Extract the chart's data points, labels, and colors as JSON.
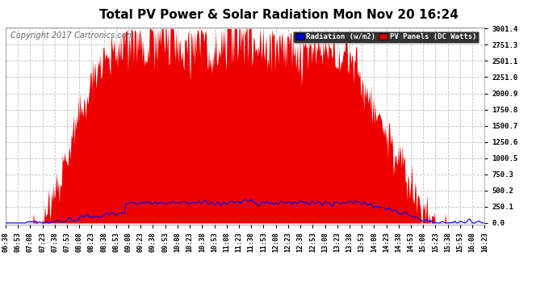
{
  "title": "Total PV Power & Solar Radiation Mon Nov 20 16:24",
  "copyright": "Copyright 2017 Cartronics.com",
  "yticks": [
    0.0,
    250.1,
    500.2,
    750.3,
    1000.5,
    1250.6,
    1500.7,
    1750.8,
    2000.9,
    2251.0,
    2501.1,
    2751.3,
    3001.4
  ],
  "ymax": 3001.4,
  "ymin": 0.0,
  "legend_radiation_label": "Radiation (w/m2)",
  "legend_pv_label": "PV Panels (DC Watts)",
  "legend_radiation_bg": "#0000cc",
  "legend_pv_bg": "#cc0000",
  "background_color": "#ffffff",
  "plot_bg": "#ffffff",
  "grid_color": "#bbbbbb",
  "bar_color": "#ee0000",
  "line_color": "#0000ee",
  "title_fontsize": 11,
  "copyright_fontsize": 7,
  "x_tick_labels": [
    "06:38",
    "06:53",
    "07:08",
    "07:23",
    "07:38",
    "07:53",
    "08:08",
    "08:23",
    "08:38",
    "08:53",
    "09:08",
    "09:23",
    "09:38",
    "09:53",
    "10:08",
    "10:23",
    "10:38",
    "10:53",
    "11:08",
    "11:23",
    "11:38",
    "11:53",
    "12:08",
    "12:23",
    "12:38",
    "12:53",
    "13:08",
    "13:23",
    "13:38",
    "13:53",
    "14:08",
    "14:23",
    "14:38",
    "14:53",
    "15:08",
    "15:23",
    "15:38",
    "15:53",
    "16:08",
    "16:23"
  ]
}
